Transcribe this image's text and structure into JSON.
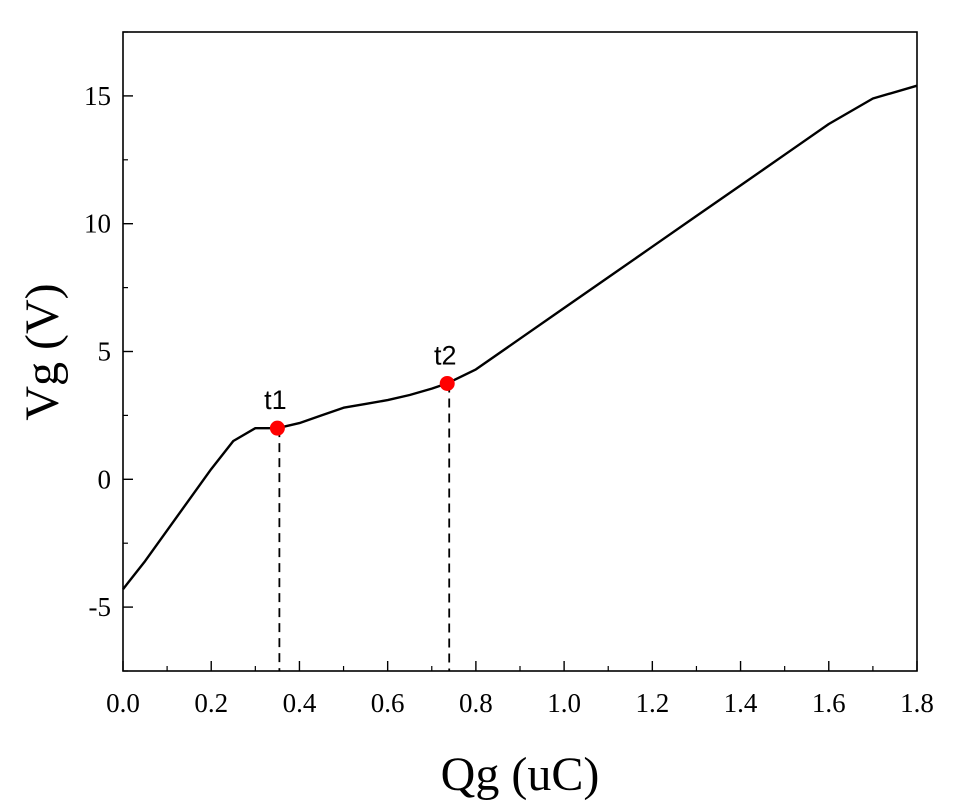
{
  "chart_data": {
    "type": "line",
    "title": "",
    "xlabel": "Qg (uC)",
    "ylabel": "Vg (V)",
    "xlim": [
      0.0,
      1.8
    ],
    "ylim": [
      -7.5,
      17.5
    ],
    "x_ticks": [
      "0.0",
      "0.2",
      "0.4",
      "0.6",
      "0.8",
      "1.0",
      "1.2",
      "1.4",
      "1.6",
      "1.8"
    ],
    "y_ticks": [
      "-5",
      "0",
      "5",
      "10",
      "15"
    ],
    "grid": false,
    "series": [
      {
        "x": [
          0.0,
          0.05,
          0.1,
          0.15,
          0.2,
          0.25,
          0.3,
          0.35,
          0.4,
          0.45,
          0.5,
          0.55,
          0.6,
          0.65,
          0.7,
          0.735,
          0.8,
          0.9,
          1.0,
          1.1,
          1.2,
          1.3,
          1.4,
          1.5,
          1.6,
          1.7,
          1.8
        ],
        "y": [
          -4.3,
          -3.2,
          -2.0,
          -0.8,
          0.4,
          1.5,
          2.0,
          2.0,
          2.2,
          2.5,
          2.8,
          2.95,
          3.1,
          3.3,
          3.55,
          3.75,
          4.3,
          5.5,
          6.7,
          7.9,
          9.1,
          10.3,
          11.5,
          12.7,
          13.9,
          14.9,
          15.4
        ]
      }
    ],
    "markers": [
      {
        "label": "t1",
        "x": 0.35,
        "y": 2.0,
        "color": "#ff0000"
      },
      {
        "label": "t2",
        "x": 0.735,
        "y": 3.75,
        "color": "#ff0000"
      }
    ]
  }
}
